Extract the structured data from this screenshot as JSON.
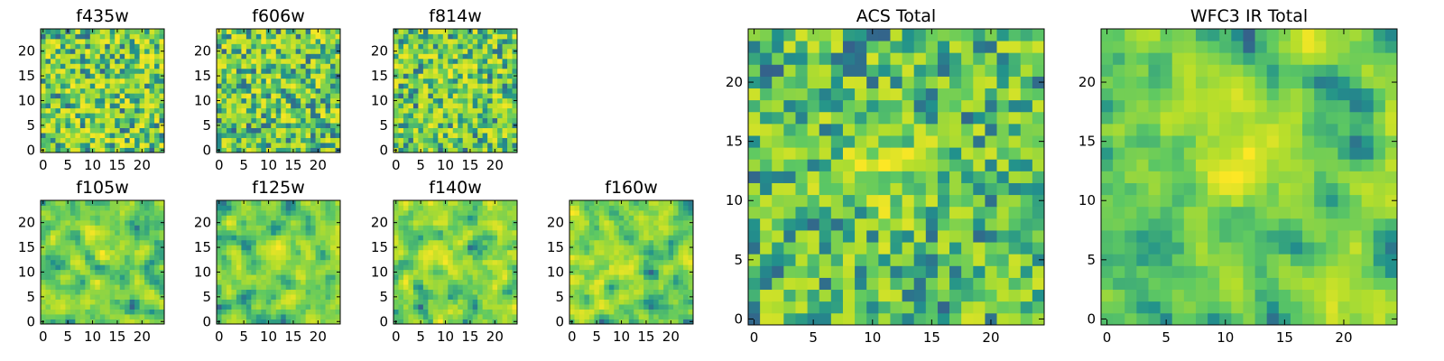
{
  "chart_data": [
    {
      "type": "heatmap",
      "title": "f435w",
      "grid": [
        25,
        25
      ],
      "x_ticks": [
        "0",
        "5",
        "10",
        "15",
        "20"
      ],
      "y_ticks": [
        "0",
        "5",
        "10",
        "15",
        "20"
      ],
      "xlim": [
        0,
        25
      ],
      "ylim": [
        0,
        25
      ],
      "colormap": "viridis",
      "seed": 11,
      "smooth": 0,
      "center_boost": 0.0
    },
    {
      "type": "heatmap",
      "title": "f606w",
      "grid": [
        25,
        25
      ],
      "x_ticks": [
        "0",
        "5",
        "10",
        "15",
        "20"
      ],
      "y_ticks": [
        "0",
        "5",
        "10",
        "15",
        "20"
      ],
      "xlim": [
        0,
        25
      ],
      "ylim": [
        0,
        25
      ],
      "colormap": "viridis",
      "seed": 23,
      "smooth": 0,
      "center_boost": 0.05
    },
    {
      "type": "heatmap",
      "title": "f814w",
      "grid": [
        25,
        25
      ],
      "x_ticks": [
        "0",
        "5",
        "10",
        "15",
        "20"
      ],
      "y_ticks": [
        "0",
        "5",
        "10",
        "15",
        "20"
      ],
      "xlim": [
        0,
        25
      ],
      "ylim": [
        0,
        25
      ],
      "colormap": "viridis",
      "seed": 37,
      "smooth": 0,
      "center_boost": 0.08
    },
    {
      "type": "heatmap",
      "title": "f105w",
      "grid": [
        25,
        25
      ],
      "x_ticks": [
        "0",
        "5",
        "10",
        "15",
        "20"
      ],
      "y_ticks": [
        "0",
        "5",
        "10",
        "15",
        "20"
      ],
      "xlim": [
        0,
        25
      ],
      "ylim": [
        0,
        25
      ],
      "colormap": "viridis",
      "seed": 41,
      "smooth": 1,
      "center_boost": 0.1
    },
    {
      "type": "heatmap",
      "title": "f125w",
      "grid": [
        25,
        25
      ],
      "x_ticks": [
        "0",
        "5",
        "10",
        "15",
        "20"
      ],
      "y_ticks": [
        "0",
        "5",
        "10",
        "15",
        "20"
      ],
      "xlim": [
        0,
        25
      ],
      "ylim": [
        0,
        25
      ],
      "colormap": "viridis",
      "seed": 53,
      "smooth": 1,
      "center_boost": 0.12
    },
    {
      "type": "heatmap",
      "title": "f140w",
      "grid": [
        25,
        25
      ],
      "x_ticks": [
        "0",
        "5",
        "10",
        "15",
        "20"
      ],
      "y_ticks": [
        "0",
        "5",
        "10",
        "15",
        "20"
      ],
      "xlim": [
        0,
        25
      ],
      "ylim": [
        0,
        25
      ],
      "colormap": "viridis",
      "seed": 67,
      "smooth": 1,
      "center_boost": 0.2
    },
    {
      "type": "heatmap",
      "title": "f160w",
      "grid": [
        25,
        25
      ],
      "x_ticks": [
        "0",
        "5",
        "10",
        "15",
        "20"
      ],
      "y_ticks": [
        "0",
        "5",
        "10",
        "15",
        "20"
      ],
      "xlim": [
        0,
        25
      ],
      "ylim": [
        0,
        25
      ],
      "colormap": "viridis",
      "seed": 79,
      "smooth": 1,
      "center_boost": 0.22
    },
    {
      "type": "heatmap",
      "title": "ACS Total",
      "grid": [
        25,
        25
      ],
      "x_ticks": [
        "0",
        "5",
        "10",
        "15",
        "20"
      ],
      "y_ticks": [
        "0",
        "5",
        "10",
        "15",
        "20"
      ],
      "xlim": [
        0,
        25
      ],
      "ylim": [
        0,
        25
      ],
      "colormap": "viridis",
      "seed": 97,
      "smooth": 0,
      "center_boost": 0.25
    },
    {
      "type": "heatmap",
      "title": "WFC3 IR Total",
      "grid": [
        25,
        25
      ],
      "x_ticks": [
        "0",
        "5",
        "10",
        "15",
        "20"
      ],
      "y_ticks": [
        "0",
        "5",
        "10",
        "15",
        "20"
      ],
      "xlim": [
        0,
        25
      ],
      "ylim": [
        0,
        25
      ],
      "colormap": "viridis",
      "seed": 113,
      "smooth": 1,
      "center_boost": 0.35
    }
  ],
  "colors": {
    "viridis_stops": [
      "#440154",
      "#3b528b",
      "#21918c",
      "#5ec962",
      "#b5de2b",
      "#fde725"
    ]
  }
}
